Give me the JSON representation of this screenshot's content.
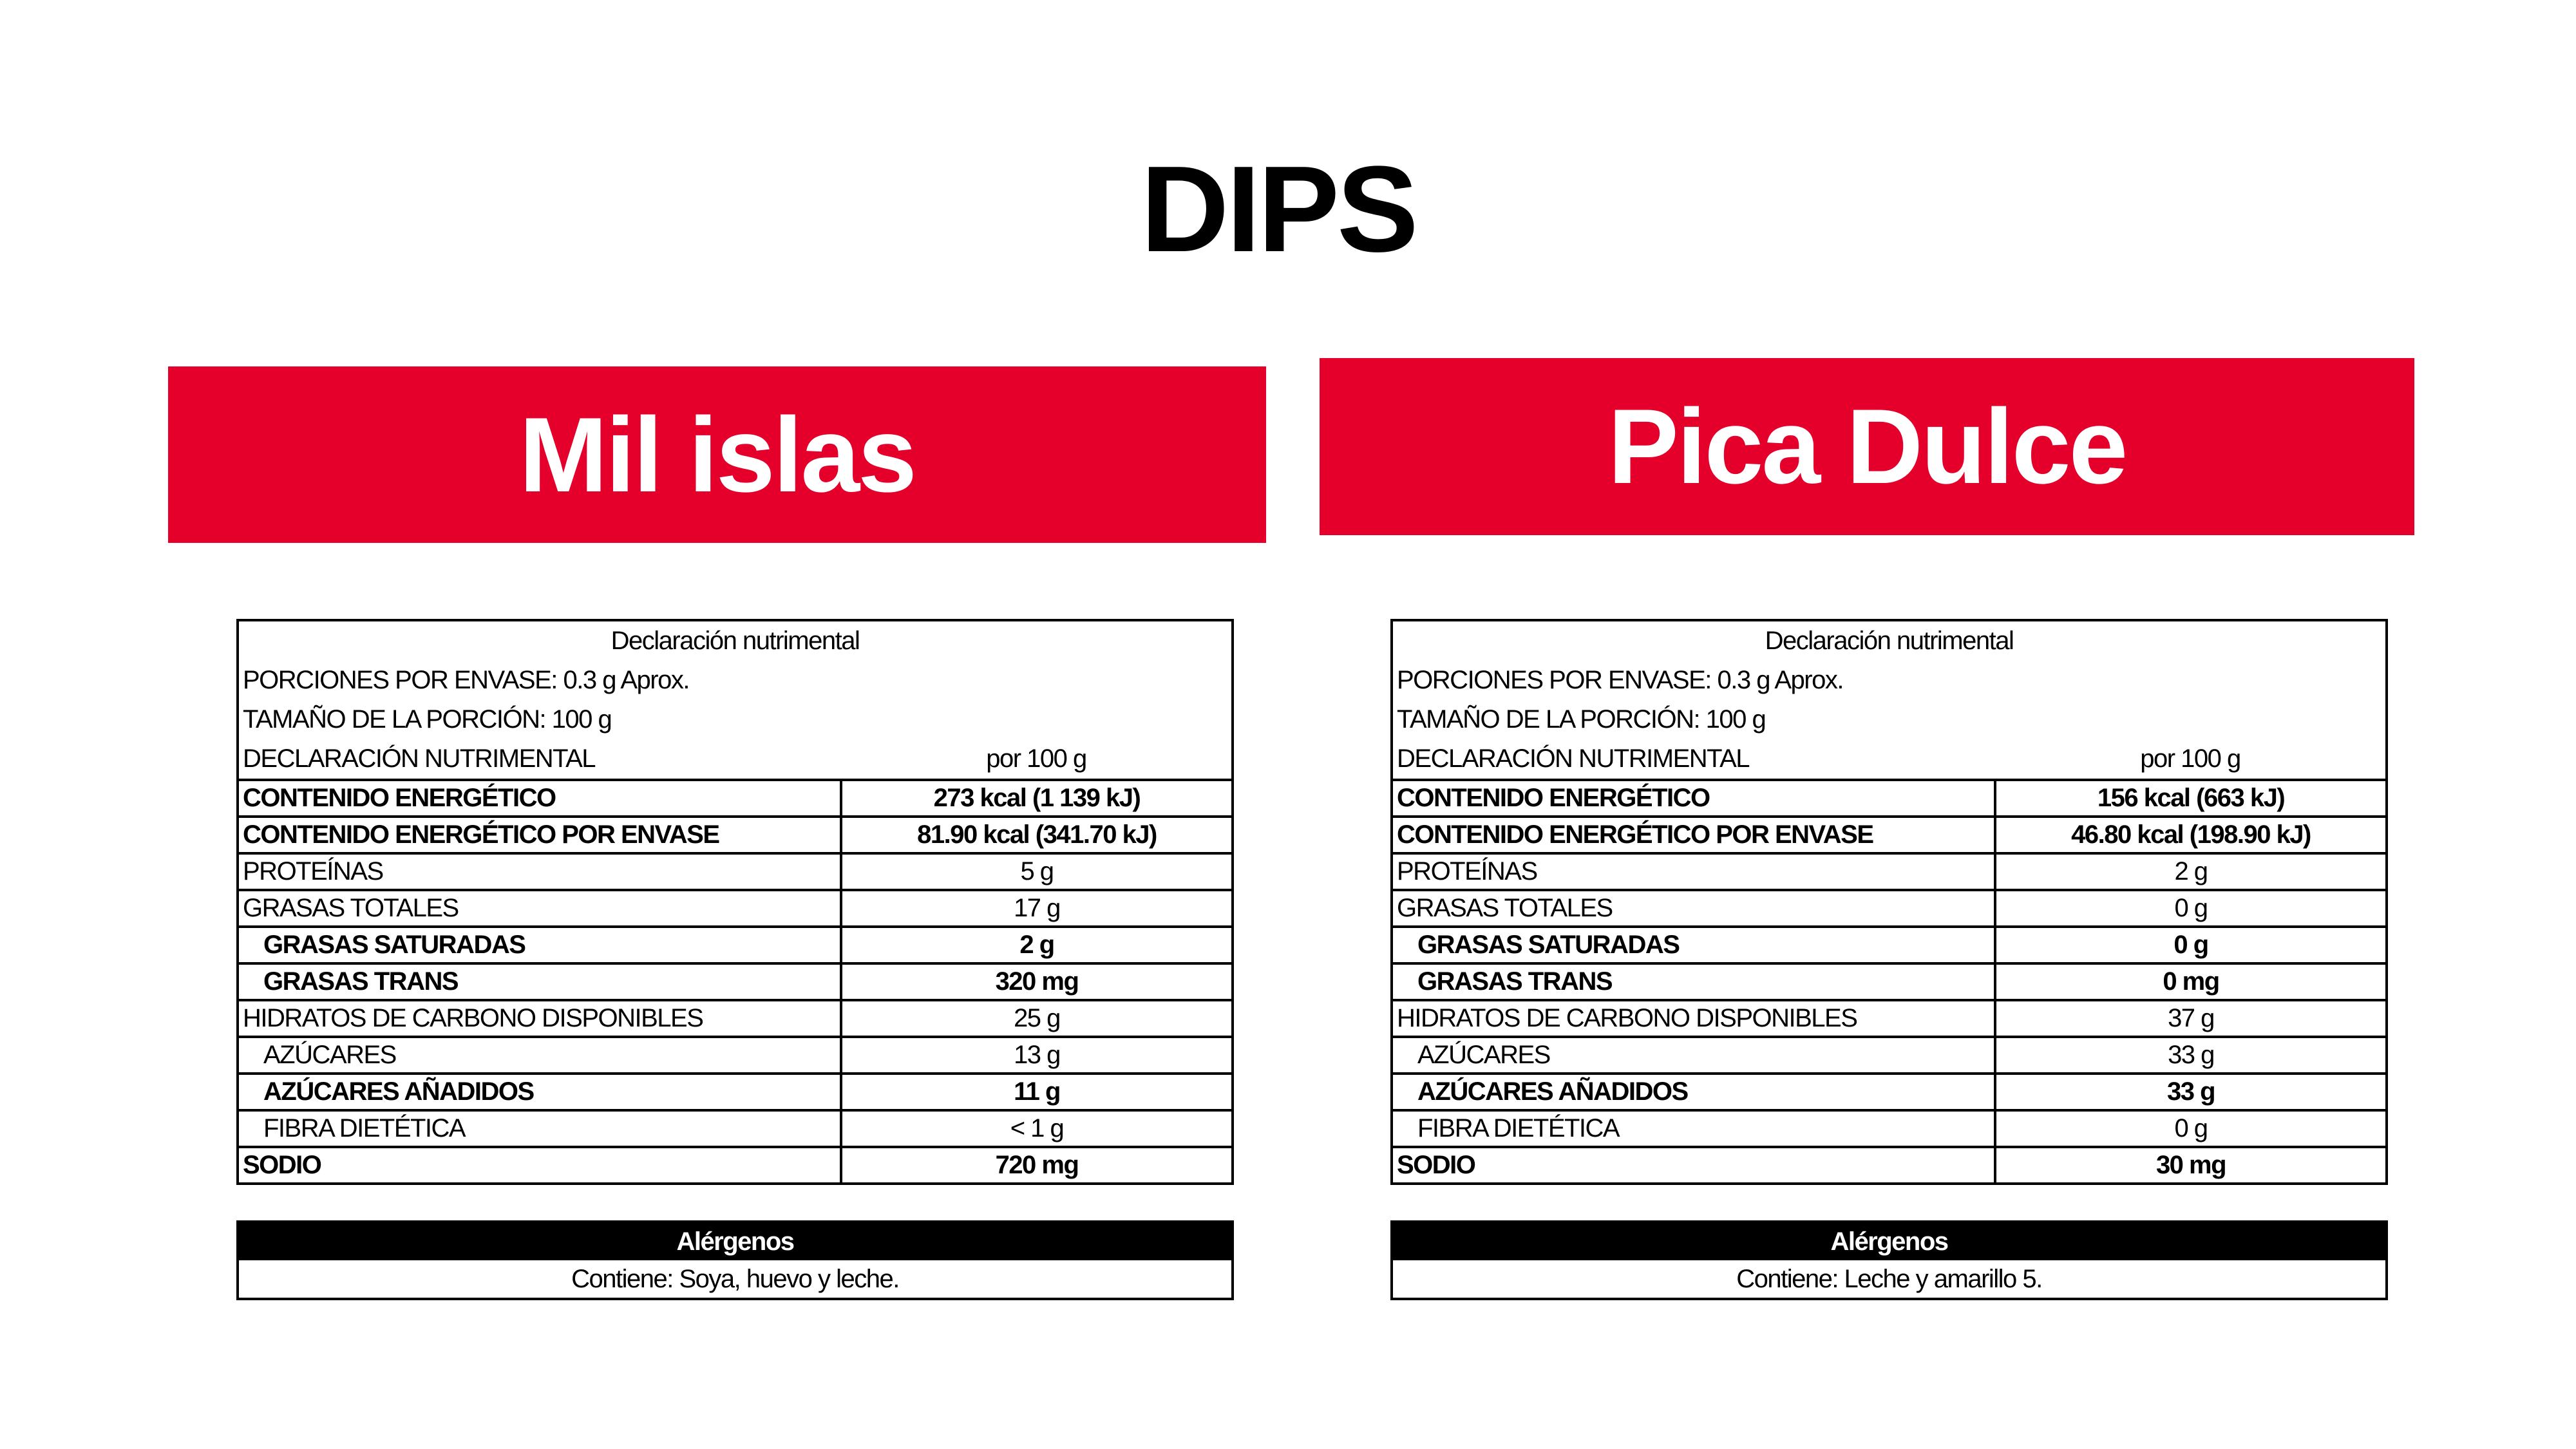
{
  "title": "DIPS",
  "products": [
    {
      "name": "Mil islas",
      "header": {
        "title": "Declaración nutrimental",
        "portions": "PORCIONES POR ENVASE: 0.3 g Aprox.",
        "portion_size": "TAMAÑO DE LA PORCIÓN: 100 g",
        "declaration": "DECLARACIÓN NUTRIMENTAL",
        "per": "por 100 g"
      },
      "rows": [
        {
          "label": "CONTENIDO ENERGÉTICO",
          "value": "273 kcal (1 139 kJ)"
        },
        {
          "label": "CONTENIDO ENERGÉTICO POR ENVASE",
          "value": "81.90 kcal (341.70 kJ)"
        },
        {
          "label": "PROTEÍNAS",
          "value": "5 g"
        },
        {
          "label": "GRASAS TOTALES",
          "value": "17 g"
        },
        {
          "label": "GRASAS SATURADAS",
          "value": "2 g"
        },
        {
          "label": "GRASAS TRANS",
          "value": "320 mg"
        },
        {
          "label": "HIDRATOS DE CARBONO DISPONIBLES",
          "value": "25 g"
        },
        {
          "label": "AZÚCARES",
          "value": "13 g"
        },
        {
          "label": "AZÚCARES AÑADIDOS",
          "value": "11 g"
        },
        {
          "label": "FIBRA DIETÉTICA",
          "value": "< 1 g"
        },
        {
          "label": "SODIO",
          "value": "720 mg"
        }
      ],
      "allergens_title": "Alérgenos",
      "allergens": "Contiene: Soya, huevo y leche."
    },
    {
      "name": "Pica Dulce",
      "header": {
        "title": "Declaración nutrimental",
        "portions": "PORCIONES POR ENVASE: 0.3 g Aprox.",
        "portion_size": "TAMAÑO DE LA PORCIÓN: 100 g",
        "declaration": "DECLARACIÓN NUTRIMENTAL",
        "per": "por 100 g"
      },
      "rows": [
        {
          "label": "CONTENIDO ENERGÉTICO",
          "value": "156 kcal (663 kJ)"
        },
        {
          "label": "CONTENIDO ENERGÉTICO POR ENVASE",
          "value": "46.80 kcal (198.90 kJ)"
        },
        {
          "label": "PROTEÍNAS",
          "value": "2 g"
        },
        {
          "label": "GRASAS TOTALES",
          "value": "0 g"
        },
        {
          "label": "GRASAS SATURADAS",
          "value": "0 g"
        },
        {
          "label": "GRASAS TRANS",
          "value": "0 mg"
        },
        {
          "label": "HIDRATOS DE CARBONO DISPONIBLES",
          "value": "37 g"
        },
        {
          "label": "AZÚCARES",
          "value": "33 g"
        },
        {
          "label": "AZÚCARES AÑADIDOS",
          "value": "33 g"
        },
        {
          "label": "FIBRA DIETÉTICA",
          "value": "0 g"
        },
        {
          "label": "SODIO",
          "value": "30 mg"
        }
      ],
      "allergens_title": "Alérgenos",
      "allergens": "Contiene: Leche y amarillo 5."
    }
  ],
  "colors": {
    "banner": "#e4002b",
    "allergen_header": "#000000"
  }
}
